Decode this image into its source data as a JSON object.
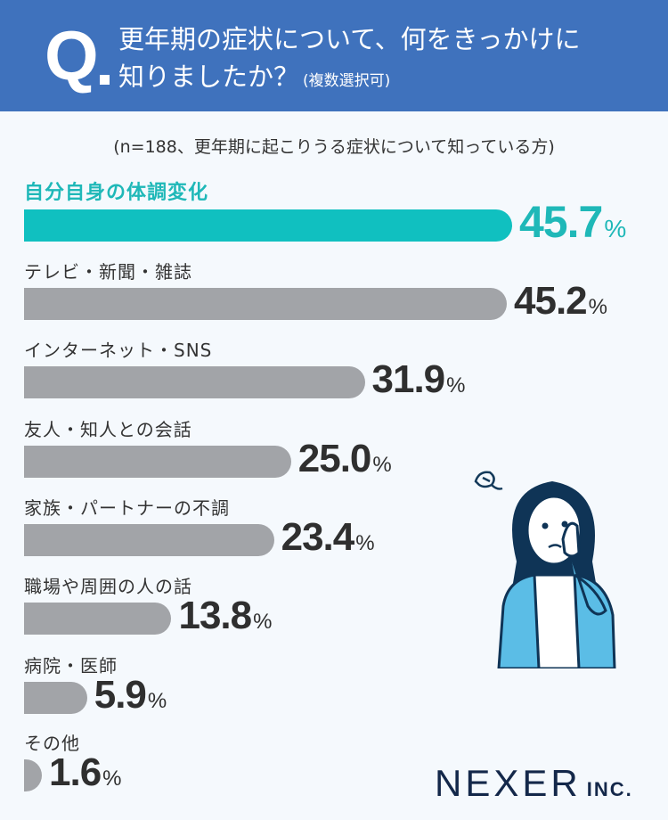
{
  "header": {
    "q_mark": "Q",
    "title_line1": "更年期の症状について、何をきっかけに",
    "title_line2": "知りましたか？",
    "title_note": "(複数選択可)"
  },
  "subtitle": "(n=188、更年期に起こりうる症状について知っている方)",
  "logo": {
    "main": "NEXER",
    "suffix": "INC."
  },
  "colors": {
    "header_bg": "#3f72bd",
    "highlight": "#10c0c0",
    "bar_gray": "#a2a4a8",
    "background": "#f5f9fd"
  },
  "chart_data": {
    "type": "bar",
    "orientation": "horizontal",
    "title": "更年期の症状について、何をきっかけに知りましたか？(複数選択可)",
    "subtitle": "(n=188、更年期に起こりうる症状について知っている方)",
    "categories": [
      "自分自身の体調変化",
      "テレビ・新聞・雑誌",
      "インターネット・SNS",
      "友人・知人との会話",
      "家族・パートナーの不調",
      "職場や周囲の人の話",
      "病院・医師",
      "その他"
    ],
    "values": [
      45.7,
      45.2,
      31.9,
      25.0,
      23.4,
      13.8,
      5.9,
      1.6
    ],
    "value_labels": [
      "45.7",
      "45.2",
      "31.9",
      "25.0",
      "23.4",
      "13.8",
      "5.9",
      "1.6"
    ],
    "unit": "%",
    "highlighted_index": 0,
    "xlabel": "",
    "ylabel": "",
    "grid": false,
    "legend": "none"
  }
}
